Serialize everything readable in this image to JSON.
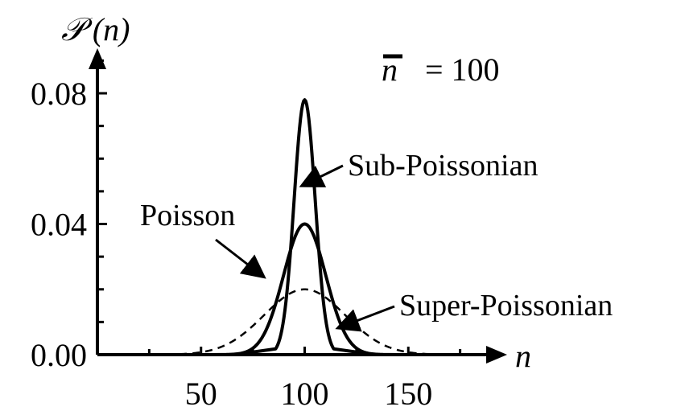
{
  "chart_data": {
    "type": "line",
    "title": "",
    "xlabel": "n",
    "ylabel": "𝒫 (n)",
    "xlim": [
      0,
      200
    ],
    "ylim": [
      0,
      0.08
    ],
    "xticks": [
      50,
      100,
      150
    ],
    "xtick_labels": [
      "50",
      "100",
      "150"
    ],
    "yticks": [
      0.0,
      0.04,
      0.08
    ],
    "ytick_labels": [
      "0.00",
      "0.04",
      "0.08"
    ],
    "mean_label": {
      "symbol": "n",
      "text": "= 100"
    },
    "grid": false,
    "legend": "none",
    "series": [
      {
        "name": "Sub-Poissonian",
        "style": "solid",
        "mean": 100,
        "peak": 0.078,
        "x_at_half_height": [
          94,
          106
        ],
        "x_range_nonzero": [
          86,
          114
        ]
      },
      {
        "name": "Poisson",
        "style": "solid",
        "mean": 100,
        "peak": 0.04,
        "x_at_half_height": [
          88,
          112
        ],
        "x_range_nonzero": [
          60,
          140
        ]
      },
      {
        "name": "Super-Poissonian",
        "style": "dashed",
        "mean": 100,
        "peak": 0.02,
        "x_at_half_height": [
          77,
          123
        ],
        "x_range_nonzero": [
          40,
          160
        ]
      }
    ],
    "annotations": [
      {
        "text": "Sub-Poissonian",
        "points_to_series": "Sub-Poissonian"
      },
      {
        "text": "Poisson",
        "points_to_series": "Poisson"
      },
      {
        "text": "Super-Poissonian",
        "points_to_series": "Super-Poissonian"
      }
    ],
    "colors": {
      "lines": "#000000",
      "background": "#ffffff"
    }
  }
}
